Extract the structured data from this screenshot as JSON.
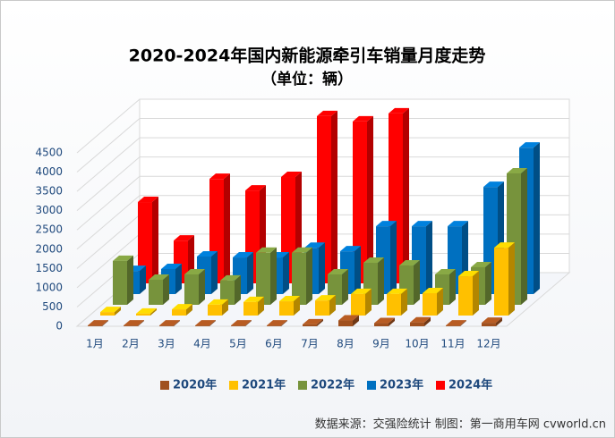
{
  "chart_data": {
    "type": "bar3d",
    "title": "2020-2024年国内新能源牵引车销量月度走势",
    "subtitle": "（单位：辆）",
    "source": "数据来源：交强险统计 制图：第一商用车网 cvworld.cn",
    "categories": [
      "1月",
      "2月",
      "3月",
      "4月",
      "5月",
      "6月",
      "7月",
      "8月",
      "9月",
      "10月",
      "11月",
      "12月"
    ],
    "series": [
      {
        "name": "2020年",
        "color": "#a0501e",
        "values": [
          20,
          20,
          20,
          20,
          20,
          20,
          50,
          150,
          80,
          100,
          20,
          90
        ]
      },
      {
        "name": "2021年",
        "color": "#ffc000",
        "values": [
          90,
          50,
          160,
          280,
          350,
          370,
          390,
          560,
          560,
          580,
          1020,
          1760
        ]
      },
      {
        "name": "2022年",
        "color": "#77933c",
        "values": [
          1140,
          650,
          790,
          630,
          1350,
          1350,
          790,
          1090,
          1020,
          790,
          975,
          3410
        ]
      },
      {
        "name": "2023年",
        "color": "#0070c0",
        "values": [
          600,
          650,
          975,
          950,
          950,
          1200,
          1110,
          1760,
          1760,
          1760,
          2780,
          3800
        ]
      },
      {
        "name": "2024年",
        "color": "#ff0000",
        "values": [
          2110,
          1110,
          2710,
          2410,
          2760,
          4340,
          4200,
          4410,
          null,
          null,
          null,
          null
        ]
      }
    ],
    "ylim": [
      0,
      4500
    ],
    "yticks": [
      0,
      500,
      1000,
      1500,
      2000,
      2500,
      3000,
      3500,
      4000,
      4500
    ],
    "grid": true,
    "legend": "bottom"
  }
}
